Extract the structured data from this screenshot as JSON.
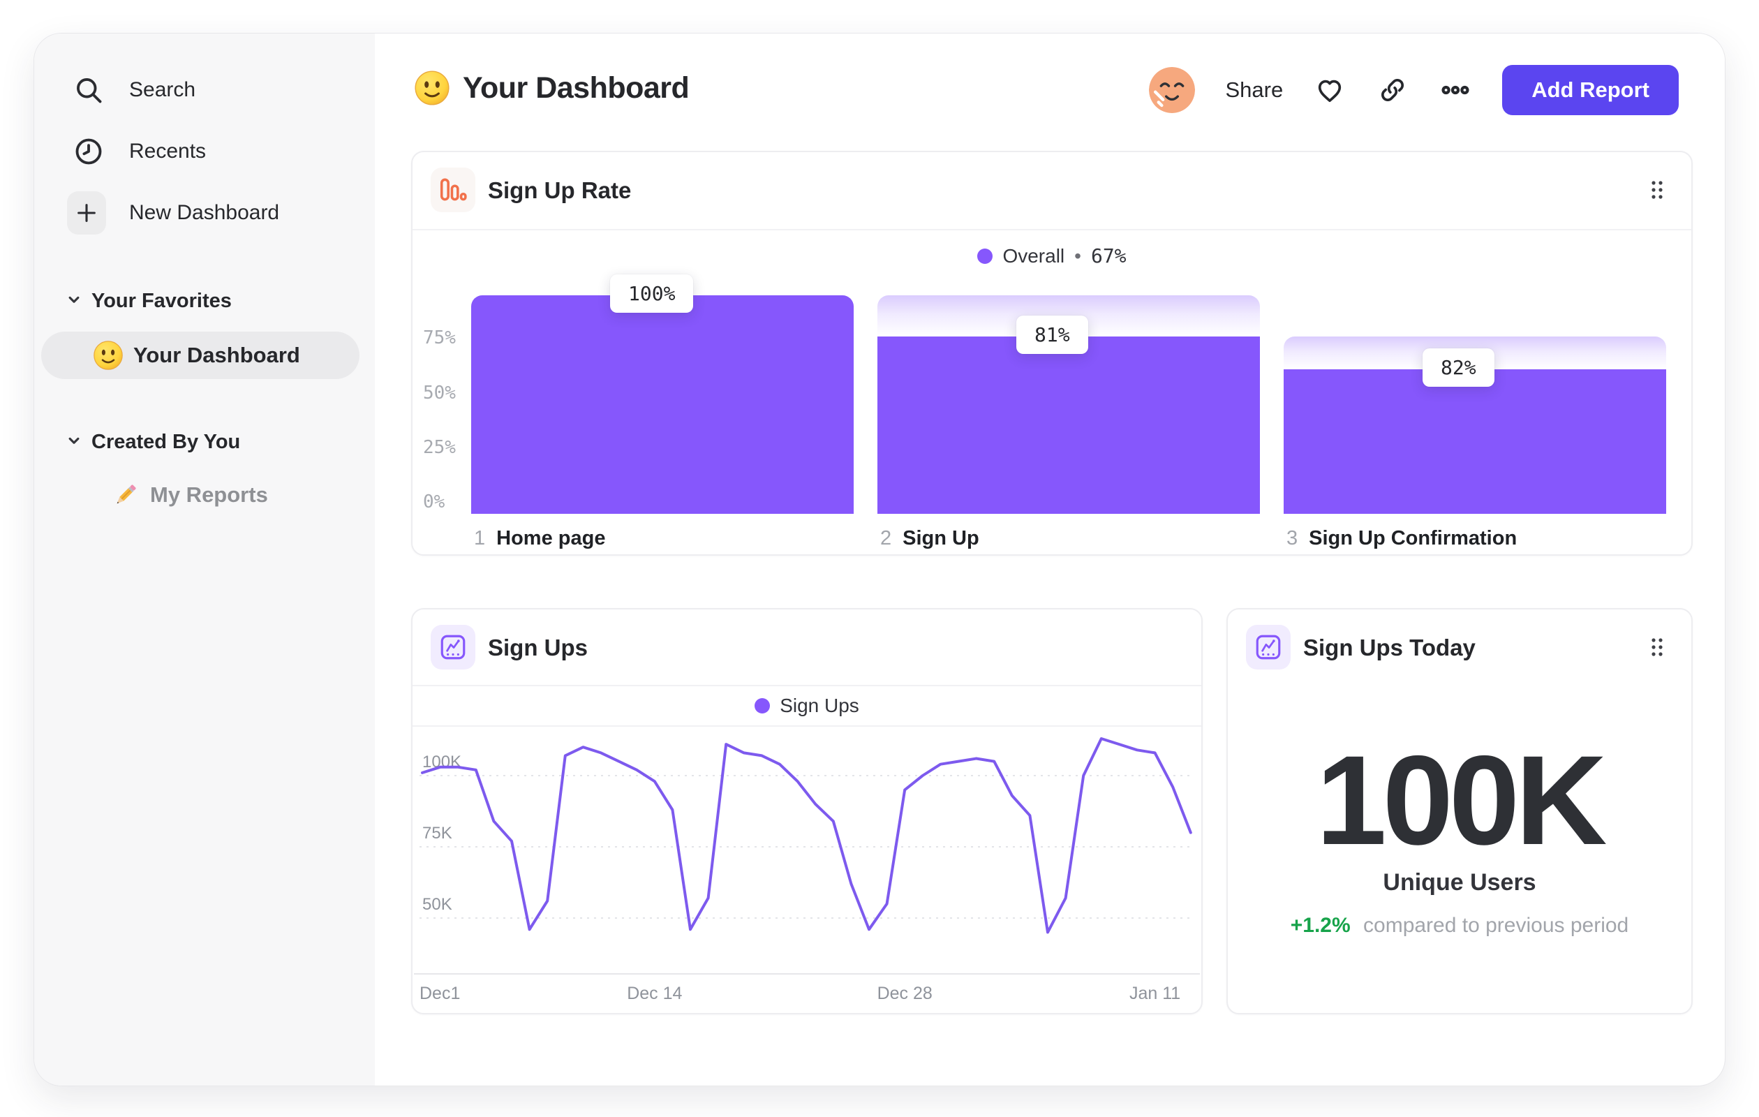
{
  "sidebar": {
    "items": [
      {
        "label": "Search",
        "icon": "search-icon"
      },
      {
        "label": "Recents",
        "icon": "clock-icon"
      },
      {
        "label": "New Dashboard",
        "icon": "plus-icon"
      }
    ],
    "sections": [
      {
        "title": "Your Favorites",
        "items": [
          {
            "label": "Your Dashboard",
            "emoji": "smiley",
            "selected": true
          }
        ]
      },
      {
        "title": "Created By You",
        "items": [
          {
            "label": "My Reports",
            "emoji": "pencil",
            "selected": false
          }
        ]
      }
    ]
  },
  "header": {
    "title": "Your Dashboard",
    "share_label": "Share",
    "add_report_label": "Add Report"
  },
  "cards": {
    "funnel": {
      "title": "Sign Up Rate",
      "legend": {
        "name": "Overall",
        "separator": "•",
        "value": "67%"
      }
    },
    "line": {
      "title": "Sign Ups",
      "legend": {
        "name": "Sign Ups"
      }
    },
    "metric": {
      "title": "Sign Ups Today",
      "value": "100K",
      "sublabel": "Unique Users",
      "delta": "+1.2%",
      "delta_note": "compared to previous period"
    }
  },
  "chart_data": [
    {
      "type": "bar",
      "subtype": "funnel",
      "title": "Sign Up Rate",
      "overall_conversion": "67%",
      "categories": [
        "Home page",
        "Sign Up",
        "Sign Up Confirmation"
      ],
      "step_numbers": [
        "1",
        "2",
        "3"
      ],
      "conversion_labels": [
        "100%",
        "81%",
        "82%"
      ],
      "solid_pct": [
        100,
        81,
        66
      ],
      "ghost_top_pct": [
        100,
        100,
        81
      ],
      "y_ticks": [
        {
          "label": "75%",
          "pct": 75
        },
        {
          "label": "50%",
          "pct": 50
        },
        {
          "label": "25%",
          "pct": 25
        },
        {
          "label": "0%",
          "pct": 0
        }
      ],
      "ylim": [
        0,
        100
      ],
      "bar_color": "#8657fc"
    },
    {
      "type": "line",
      "title": "Sign Ups",
      "unit": "K",
      "series": [
        {
          "name": "Sign Ups",
          "values": [
            101,
            103,
            103,
            102,
            84,
            77,
            46,
            56,
            107,
            110,
            108,
            105,
            102,
            98,
            88,
            46,
            57,
            111,
            108,
            107,
            104,
            98,
            90,
            84,
            62,
            46,
            55,
            95,
            100,
            104,
            105,
            106,
            105,
            93,
            86,
            45,
            57,
            100,
            113,
            111,
            109,
            108,
            96,
            80
          ]
        }
      ],
      "x_ticks": [
        {
          "label": "Dec1",
          "day": 0
        },
        {
          "label": "Dec 14",
          "day": 13
        },
        {
          "label": "Dec 28",
          "day": 27
        },
        {
          "label": "Jan 11",
          "day": 41
        }
      ],
      "y_ticks": [
        {
          "label": "100K",
          "value": 100
        },
        {
          "label": "75K",
          "value": 75
        },
        {
          "label": "50K",
          "value": 50
        }
      ],
      "y_domain": [
        30,
        115
      ],
      "grid": "dashed-horizontal",
      "line_color": "#7d5aee"
    }
  ],
  "colors": {
    "accent_purple": "#8657fc",
    "line_purple": "#7d5aee",
    "button_indigo": "#5b45f0",
    "positive_green": "#17a34a",
    "funnel_icon_orange": "#f1714b",
    "sidebar_bg": "#f7f7f8"
  }
}
